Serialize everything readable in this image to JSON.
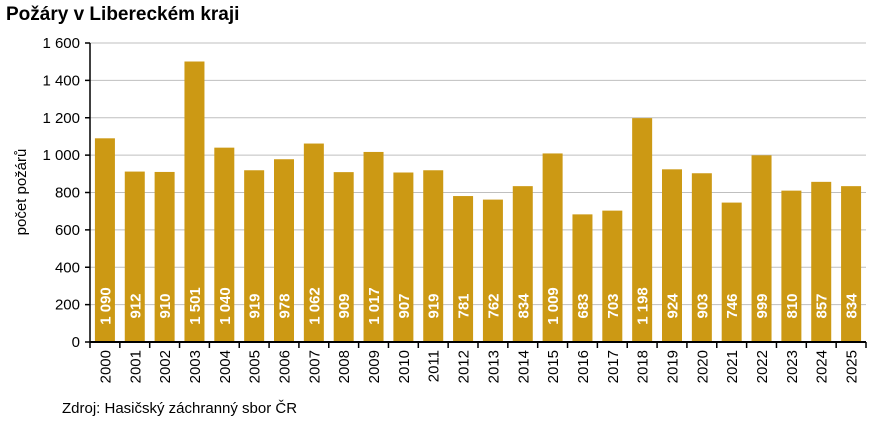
{
  "chart_data": {
    "type": "bar",
    "title": "Požáry v Libereckém kraji",
    "ylabel": "počet požárů",
    "xlabel": "",
    "source": "Zdroj: Hasičský záchranný sbor ČR",
    "ylim": [
      0,
      1600
    ],
    "yticks": [
      0,
      200,
      400,
      600,
      800,
      1000,
      1200,
      1400,
      1600
    ],
    "ytick_labels": [
      "0",
      "200",
      "400",
      "600",
      "800",
      "1 000",
      "1 200",
      "1 400",
      "1 600"
    ],
    "grid": true,
    "bar_color": "#CC9914",
    "categories": [
      "2000",
      "2001",
      "2002",
      "2003",
      "2004",
      "2005",
      "2006",
      "2007",
      "2008",
      "2009",
      "2010",
      "2011",
      "2012",
      "2013",
      "2014",
      "2015",
      "2016",
      "2017",
      "2018",
      "2019",
      "2020",
      "2021",
      "2022",
      "2023",
      "2024",
      "2025"
    ],
    "values": [
      1090,
      912,
      910,
      1501,
      1040,
      919,
      978,
      1062,
      909,
      1017,
      907,
      919,
      781,
      762,
      834,
      1009,
      683,
      703,
      1198,
      924,
      903,
      746,
      999,
      810,
      857,
      834
    ],
    "data_labels": [
      "1 090",
      "912",
      "910",
      "1 501",
      "1 040",
      "919",
      "978",
      "1 062",
      "909",
      "1 017",
      "907",
      "919",
      "781",
      "762",
      "834",
      "1 009",
      "683",
      "703",
      "1 198",
      "924",
      "903",
      "746",
      "999",
      "810",
      "857",
      "834"
    ]
  }
}
